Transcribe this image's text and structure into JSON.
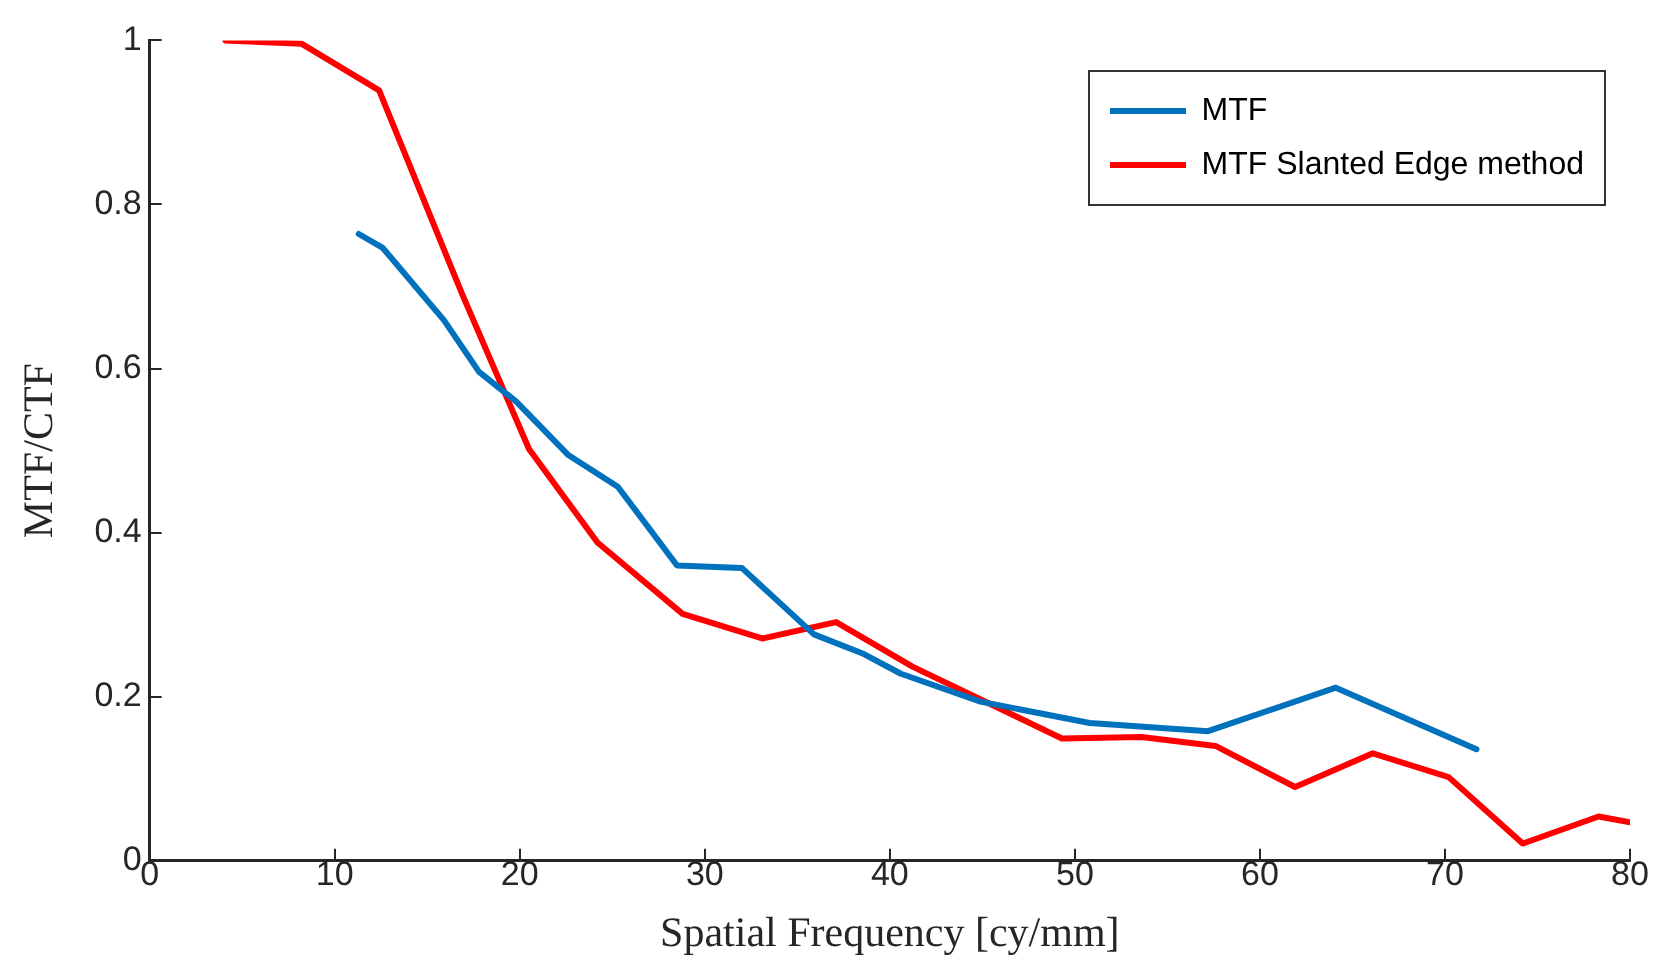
{
  "chart_data": {
    "type": "line",
    "xlabel": "Spatial Frequency [cy/mm]",
    "ylabel": "MTF/CTF",
    "xlim": [
      0,
      80
    ],
    "xticks": [
      0,
      10,
      20,
      30,
      40,
      50,
      60,
      70,
      80
    ],
    "ylim": [
      0,
      1
    ],
    "yticks": [
      0,
      0.2,
      0.4,
      0.6,
      0.8,
      1
    ],
    "grid": false,
    "legend": "top right",
    "marker": "none",
    "line_style": "solid",
    "series": [
      {
        "name": "MTF",
        "color": "#0072bd",
        "x": [
          11.3,
          12.6,
          15.9,
          17.8,
          19.8,
          22.6,
          25.3,
          28.5,
          32,
          35.9,
          38.6,
          40.6,
          44.9,
          50.8,
          57.2,
          64.1,
          71.7
        ],
        "values": [
          0.764,
          0.747,
          0.659,
          0.596,
          0.56,
          0.495,
          0.456,
          0.36,
          0.357,
          0.276,
          0.252,
          0.228,
          0.194,
          0.168,
          0.158,
          0.211,
          0.136
        ]
      },
      {
        "name": "MTF Slanted Edge method",
        "color": "#ff0000",
        "x": [
          4.1,
          8.2,
          12.4,
          16.9,
          20.5,
          24.2,
          28.8,
          33.1,
          37.1,
          41.2,
          49.3,
          53.6,
          57.6,
          61.9,
          66.1,
          70.2,
          74.2,
          78.3,
          80
        ],
        "values": [
          1.0,
          0.996,
          0.939,
          0.69,
          0.502,
          0.388,
          0.301,
          0.271,
          0.291,
          0.237,
          0.149,
          0.151,
          0.14,
          0.09,
          0.131,
          0.102,
          0.021,
          0.054,
          0.047
        ]
      }
    ]
  }
}
